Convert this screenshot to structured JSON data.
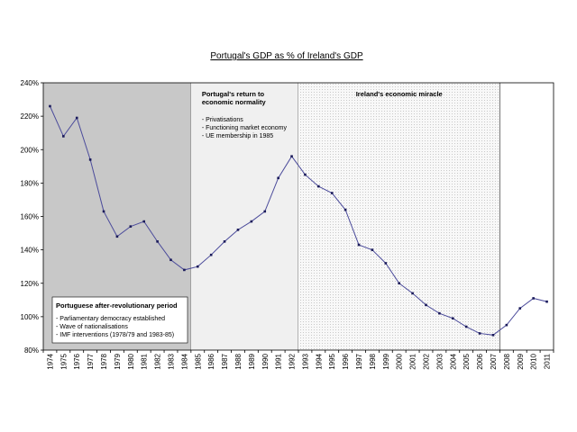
{
  "chart_data": {
    "type": "line",
    "title": "Portugal's GDP as % of Ireland's GDP",
    "xlabel": "",
    "ylabel": "",
    "ylim": [
      80,
      240
    ],
    "y_ticks": [
      "80%",
      "100%",
      "120%",
      "140%",
      "160%",
      "180%",
      "200%",
      "220%",
      "240%"
    ],
    "y_tick_values": [
      80,
      100,
      120,
      140,
      160,
      180,
      200,
      220,
      240
    ],
    "categories": [
      "1974",
      "1975",
      "1976",
      "1977",
      "1978",
      "1979",
      "1980",
      "1981",
      "1982",
      "1983",
      "1984",
      "1985",
      "1986",
      "1987",
      "1988",
      "1989",
      "1990",
      "1991",
      "1992",
      "1993",
      "1994",
      "1995",
      "1996",
      "1997",
      "1998",
      "1999",
      "2000",
      "2001",
      "2002",
      "2003",
      "2004",
      "2005",
      "2006",
      "2007",
      "2008",
      "2009",
      "2010",
      "2011"
    ],
    "series": [
      {
        "name": "Portugal's GDP as % of Ireland's GDP",
        "color": "#4b4b9b",
        "values": [
          226,
          208,
          219,
          194,
          163,
          148,
          154,
          157,
          145,
          134,
          128,
          130,
          137,
          145,
          152,
          157,
          163,
          183,
          196,
          185,
          178,
          174,
          164,
          143,
          140,
          132,
          120,
          114,
          107,
          102,
          99,
          94,
          90,
          89,
          95,
          105,
          111,
          109
        ]
      }
    ],
    "regions": [
      {
        "name": "Portuguese after-revolutionary period",
        "from": "1974",
        "to": "1984",
        "fill": "#c8c8c8",
        "title": "Portuguese after-revolutionary period",
        "items": [
          "- Parliamentary democracy established",
          "- Wave of nationalisations",
          "- IMF interventions (1978/79 and 1983-85)"
        ],
        "text_position": "bottom"
      },
      {
        "name": "Portugal's return to economic normality",
        "from": "1985",
        "to": "1992",
        "fill": "#f0f0f0",
        "title_lines": [
          "Portugal's return to",
          "economic normality"
        ],
        "items": [
          "- Privatisations",
          "- Functioning market economy",
          "- UE membership in 1985"
        ],
        "text_position": "top"
      },
      {
        "name": "Ireland's economic miracle",
        "from": "1993",
        "to": "2007",
        "fill": "#f6f6f6",
        "pattern": "dotted",
        "title": "Ireland's economic miracle",
        "text_position": "top"
      }
    ],
    "grid": false,
    "legend": "none"
  }
}
